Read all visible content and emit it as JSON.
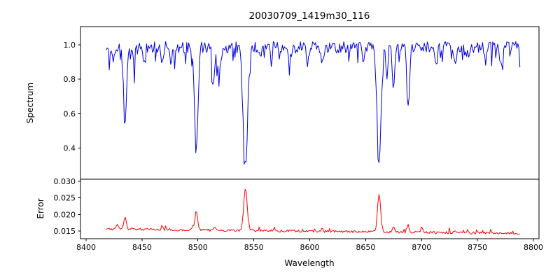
{
  "figure": {
    "title": "20030709_1419m30_116",
    "xlabel": "Wavelength",
    "spectrum_ylabel": "Spectrum",
    "error_ylabel": "Error",
    "background_color": "#ffffff",
    "axis_color": "#000000",
    "spectrum_line_color": "#0000dd",
    "error_line_color": "#ff0000"
  },
  "chart_data": [
    {
      "type": "line",
      "name": "spectrum",
      "title": "20030709_1419m30_116",
      "xlabel": "Wavelength",
      "ylabel": "Spectrum",
      "line_color": "#0000dd",
      "grid": false,
      "legend": null,
      "xlim": [
        8395,
        8805
      ],
      "ylim": [
        0.22,
        1.105
      ],
      "xticks": [
        "8400",
        "8450",
        "8500",
        "8550",
        "8600",
        "8650",
        "8700",
        "8750",
        "8800"
      ],
      "yticks": [
        "0.4",
        "0.6",
        "0.8",
        "1.0"
      ],
      "x_start": 8418,
      "x_end": 8788,
      "x_step": 0.9,
      "continuum_level": 0.985,
      "noise_amplitude": 0.033,
      "small_dip_probability": 0.15,
      "small_dip_max_depth": 0.12,
      "noise_seed": 20030709,
      "absorption_lines": [
        {
          "center": 8424.5,
          "depth": 0.1,
          "sigma": 0.9
        },
        {
          "center": 8435.0,
          "depth": 0.415,
          "sigma": 1.3
        },
        {
          "center": 8443.0,
          "depth": 0.09,
          "sigma": 0.9
        },
        {
          "center": 8452.0,
          "depth": 0.07,
          "sigma": 0.9
        },
        {
          "center": 8468.0,
          "depth": 0.1,
          "sigma": 0.9
        },
        {
          "center": 8476.0,
          "depth": 0.08,
          "sigma": 0.9
        },
        {
          "center": 8498.5,
          "depth": 0.585,
          "sigma": 1.5
        },
        {
          "center": 8514.0,
          "depth": 0.2,
          "sigma": 1.0
        },
        {
          "center": 8519.0,
          "depth": 0.18,
          "sigma": 1.0
        },
        {
          "center": 8542.5,
          "depth": 0.7,
          "sigma": 1.9
        },
        {
          "center": 8556.0,
          "depth": 0.07,
          "sigma": 0.9
        },
        {
          "center": 8582.0,
          "depth": 0.09,
          "sigma": 0.9
        },
        {
          "center": 8598.0,
          "depth": 0.1,
          "sigma": 0.9
        },
        {
          "center": 8611.0,
          "depth": 0.11,
          "sigma": 0.9
        },
        {
          "center": 8648.0,
          "depth": 0.09,
          "sigma": 0.9
        },
        {
          "center": 8662.0,
          "depth": 0.67,
          "sigma": 1.8
        },
        {
          "center": 8669.0,
          "depth": 0.16,
          "sigma": 0.9
        },
        {
          "center": 8675.0,
          "depth": 0.24,
          "sigma": 1.1
        },
        {
          "center": 8688.0,
          "depth": 0.36,
          "sigma": 1.2
        },
        {
          "center": 8713.0,
          "depth": 0.09,
          "sigma": 0.9
        },
        {
          "center": 8730.0,
          "depth": 0.11,
          "sigma": 1.0
        },
        {
          "center": 8742.0,
          "depth": 0.08,
          "sigma": 0.9
        },
        {
          "center": 8757.0,
          "depth": 0.09,
          "sigma": 0.9
        },
        {
          "center": 8772.0,
          "depth": 0.12,
          "sigma": 1.0
        }
      ]
    },
    {
      "type": "line",
      "name": "error",
      "xlabel": "Wavelength",
      "ylabel": "Error",
      "line_color": "#ff0000",
      "grid": false,
      "legend": null,
      "xlim": [
        8395,
        8805
      ],
      "ylim": [
        0.0127,
        0.0306
      ],
      "xticks": [
        "8400",
        "8450",
        "8500",
        "8550",
        "8600",
        "8650",
        "8700",
        "8750",
        "8800"
      ],
      "yticks": [
        "0.015",
        "0.020",
        "0.025",
        "0.030"
      ],
      "x_start": 8418,
      "x_end": 8788,
      "x_step": 0.9,
      "baseline_start": 0.0156,
      "baseline_end": 0.0143,
      "noise_amplitude": 0.00035,
      "spike_probability": 0.06,
      "spike_max_height": 0.0012,
      "noise_seed": 1419,
      "error_peaks": [
        {
          "center": 8428.0,
          "height": 0.0015,
          "sigma": 0.9
        },
        {
          "center": 8435.0,
          "height": 0.0036,
          "sigma": 1.1
        },
        {
          "center": 8468.0,
          "height": 0.0008,
          "sigma": 0.8
        },
        {
          "center": 8498.5,
          "height": 0.0058,
          "sigma": 1.2
        },
        {
          "center": 8515.0,
          "height": 0.0011,
          "sigma": 0.9
        },
        {
          "center": 8542.5,
          "height": 0.0128,
          "sigma": 1.5
        },
        {
          "center": 8611.0,
          "height": 0.0008,
          "sigma": 0.8
        },
        {
          "center": 8662.0,
          "height": 0.0116,
          "sigma": 1.4
        },
        {
          "center": 8675.0,
          "height": 0.0015,
          "sigma": 0.9
        },
        {
          "center": 8688.0,
          "height": 0.0021,
          "sigma": 1.0
        },
        {
          "center": 8700.0,
          "height": 0.0012,
          "sigma": 0.9
        },
        {
          "center": 8730.0,
          "height": 0.0009,
          "sigma": 0.8
        }
      ]
    }
  ]
}
